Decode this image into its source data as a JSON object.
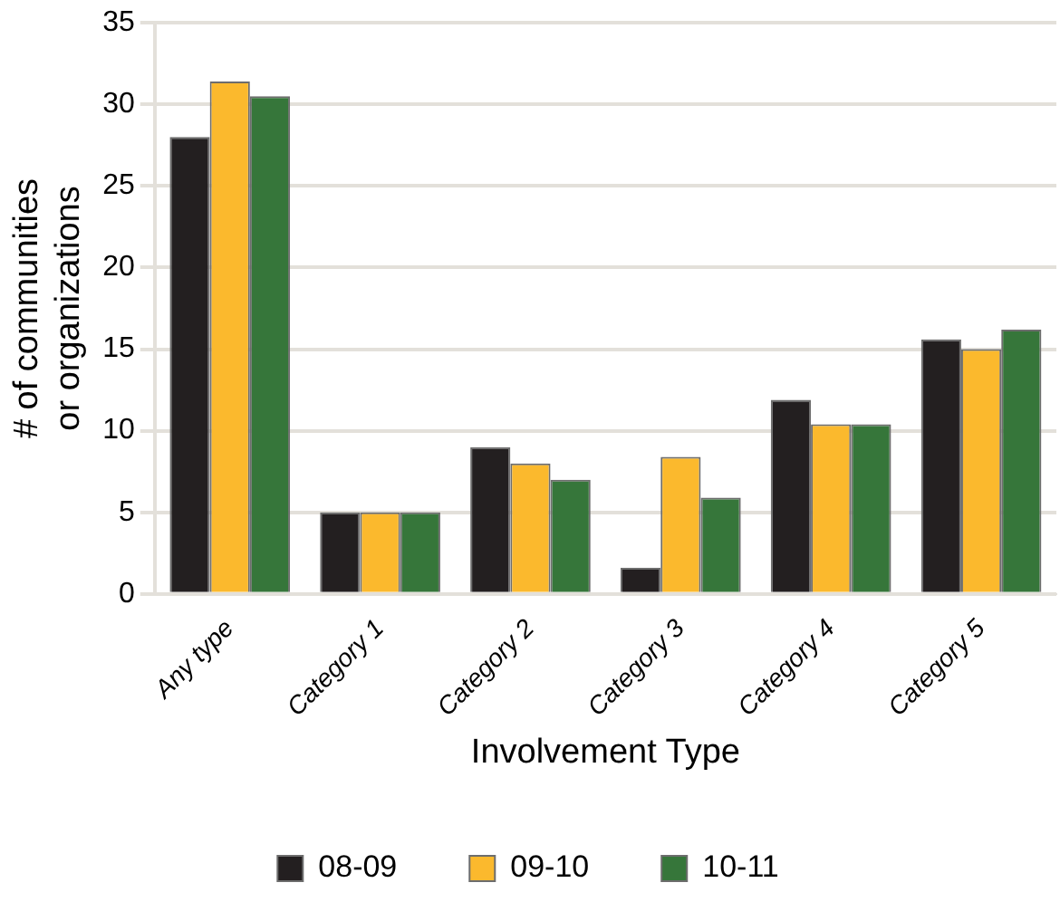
{
  "chart_data": {
    "type": "bar",
    "xlabel": "Involvement Type",
    "ylabel": "# of communities\nor organizations",
    "categories": [
      "Any type",
      "Category 1",
      "Category 2",
      "Category 3",
      "Category 4",
      "Category 5"
    ],
    "series": [
      {
        "name": "08-09",
        "color": "#231f20",
        "values": [
          28,
          5,
          9,
          1.6,
          11.9,
          15.6
        ]
      },
      {
        "name": "09-10",
        "color": "#fbb92d",
        "values": [
          31.4,
          5,
          8,
          8.4,
          10.4,
          15
        ]
      },
      {
        "name": "10-11",
        "color": "#36763a",
        "values": [
          30.5,
          5,
          7,
          5.9,
          10.4,
          16.2
        ]
      }
    ],
    "ylim": [
      0,
      35
    ],
    "yticks": [
      0,
      5,
      10,
      15,
      20,
      25,
      30,
      35
    ],
    "grid": "y",
    "legend": "bottom"
  }
}
